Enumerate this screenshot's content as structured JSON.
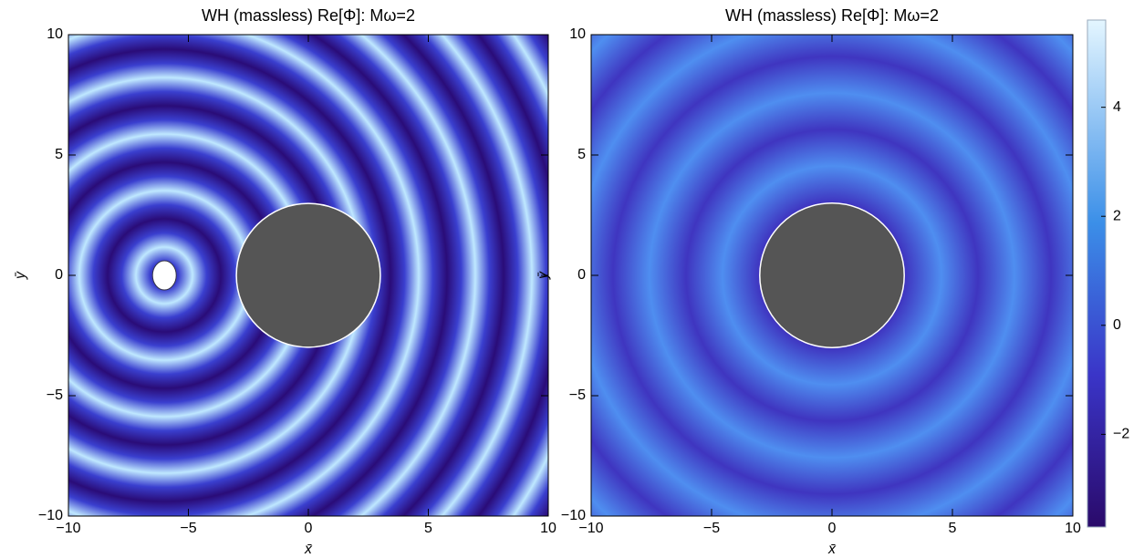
{
  "chart_data": [
    {
      "type": "heatmap",
      "title": "WH (massless) Re[Φ]: Mω=2",
      "xlabel": "x̄",
      "ylabel": "ȳ",
      "xlim": [
        -10,
        10
      ],
      "ylim": [
        -10,
        10
      ],
      "xticks": [
        {
          "value": -10,
          "label": "−10"
        },
        {
          "value": -5,
          "label": "−5"
        },
        0,
        5,
        10
      ],
      "yticks": [
        {
          "value": -10,
          "label": "−10"
        },
        {
          "value": -5,
          "label": "−5"
        },
        0,
        5,
        10
      ]
    },
    {
      "type": "heatmap",
      "title": "WH (massless) Re[Φ]: Mω=2",
      "xlabel": "x̄",
      "ylabel": "ȳ",
      "xlim": [
        -10,
        10
      ],
      "ylim": [
        -10,
        10
      ],
      "xticks": [
        {
          "value": -10,
          "label": "−10"
        },
        {
          "value": -5,
          "label": "−5"
        },
        0,
        5,
        10
      ],
      "yticks": [
        {
          "value": -10,
          "label": "−10"
        },
        {
          "value": -5,
          "label": "−5"
        },
        0,
        5,
        10
      ],
      "colorbar": {
        "lim": [
          -3.7,
          5.6
        ],
        "ticks": [
          {
            "value": -2,
            "label": "−2"
          },
          0,
          2,
          4
        ]
      }
    }
  ]
}
